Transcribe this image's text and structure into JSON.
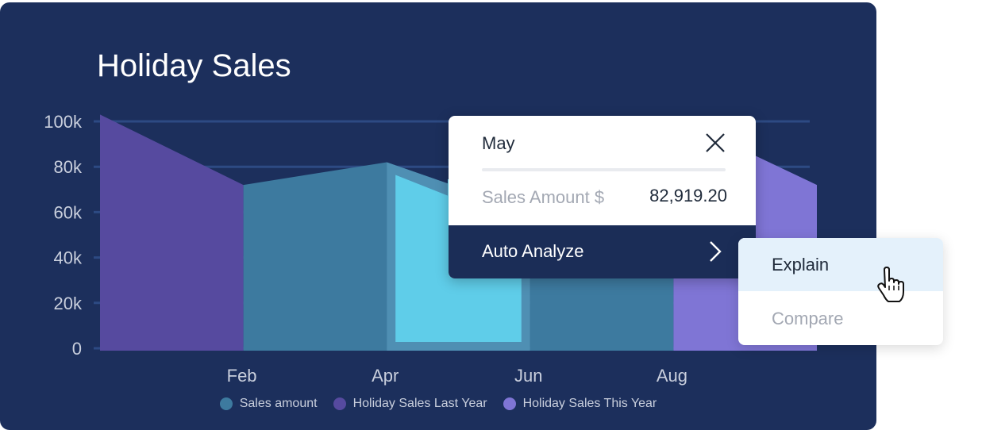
{
  "chart_data": {
    "type": "area",
    "title": "Holiday Sales",
    "categories": [
      "",
      "Feb",
      "",
      "Apr",
      "",
      "Jun",
      "",
      "Aug",
      ""
    ],
    "x_tick_labels": [
      "Feb",
      "Apr",
      "Jun",
      "Aug"
    ],
    "y_tick_labels": [
      "0",
      "20k",
      "40k",
      "60k",
      "80k",
      "100k"
    ],
    "ylim": [
      0,
      100000
    ],
    "grid": true,
    "legend_position": "bottom",
    "series": [
      {
        "name": "Sales amount",
        "color": "#3d7a9f"
      },
      {
        "name": "Holiday Sales Last Year",
        "color": "#564a9f"
      },
      {
        "name": "Holiday Sales This Year",
        "color": "#7f75d5"
      }
    ],
    "segments": [
      {
        "series": "Holiday Sales Last Year",
        "x_from": 0,
        "x_to": 1,
        "y_from": 103000,
        "y_to": 72000
      },
      {
        "series": "Sales amount",
        "x_from": 1,
        "x_to": 2,
        "y_from": 72000,
        "y_to": 82000
      },
      {
        "series": "Sales amount",
        "x_from": 2,
        "x_to": 3,
        "y_from": 82000,
        "y_to": 60000,
        "highlighted": true
      },
      {
        "series": "Sales amount",
        "x_from": 3,
        "x_to": 4,
        "y_from": 60000,
        "y_to": 80000
      },
      {
        "series": "Holiday Sales This Year",
        "x_from": 4,
        "x_to": 5,
        "y_from": 102000,
        "y_to": 72000
      }
    ],
    "highlight_color": "#5fcde9"
  },
  "tooltip": {
    "month": "May",
    "amount_label": "Sales Amount $",
    "amount_value": "82,919.20",
    "action_label": "Auto Analyze"
  },
  "submenu": {
    "explain_label": "Explain",
    "compare_label": "Compare"
  },
  "colors": {
    "background": "#1c2f5c",
    "gridline": "#2d4a83",
    "axis_text": "#c9cfdd"
  }
}
